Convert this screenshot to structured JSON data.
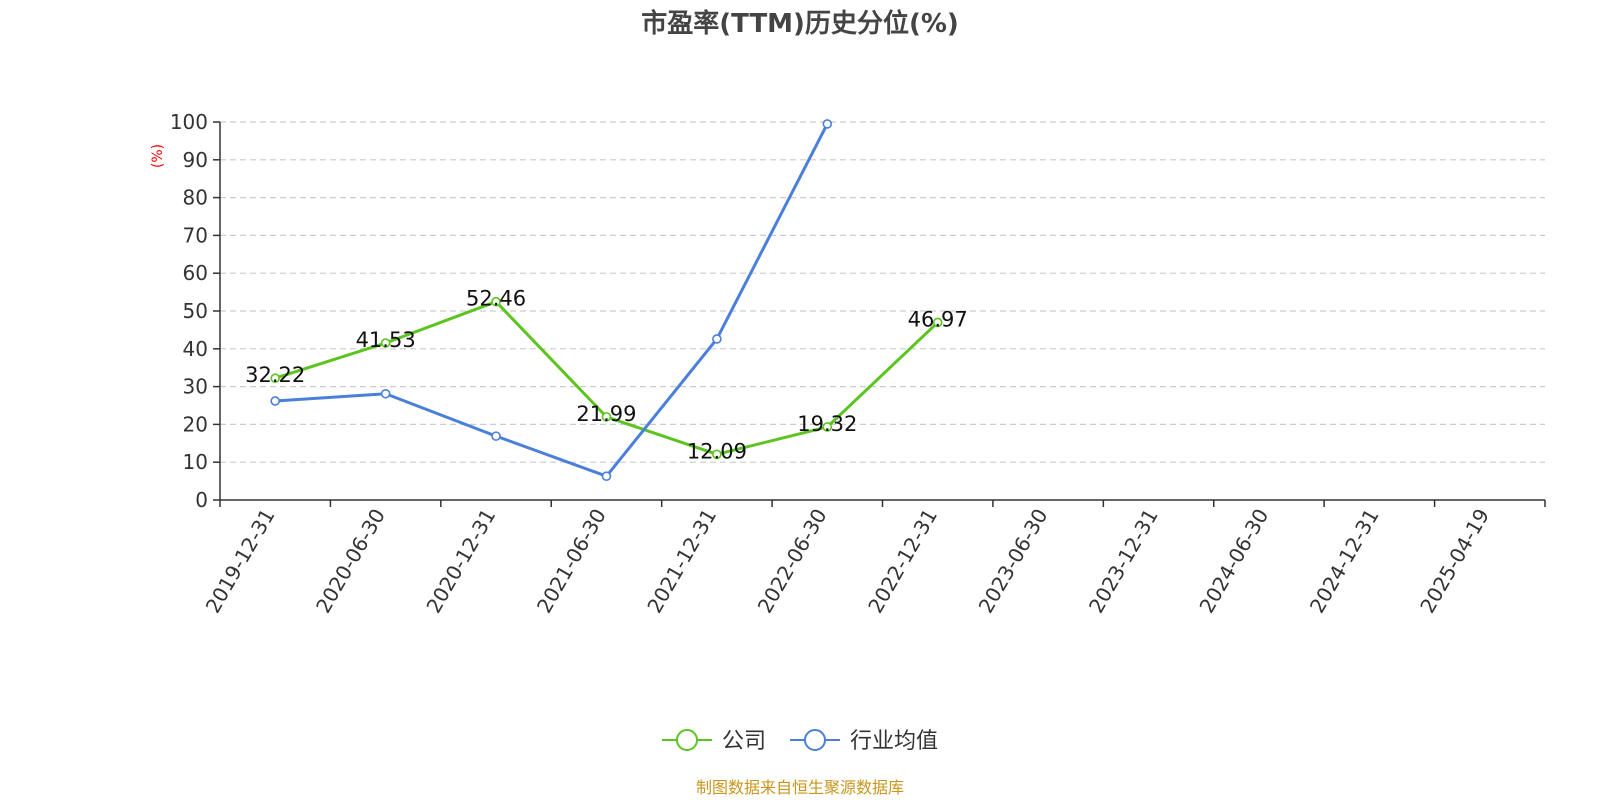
{
  "chart_data": {
    "type": "line",
    "title": "市盈率(TTM)历史分位(%)",
    "ylabel": "(%)",
    "ylim": [
      0,
      100
    ],
    "yticks": [
      0,
      10,
      20,
      30,
      40,
      50,
      60,
      70,
      80,
      90,
      100
    ],
    "grid": true,
    "legend_position": "bottom-center",
    "categories": [
      "2019-12-31",
      "2020-06-30",
      "2020-12-31",
      "2021-06-30",
      "2021-12-31",
      "2022-06-30",
      "2022-12-31",
      "2023-06-30",
      "2023-12-31",
      "2024-06-30",
      "2024-12-31",
      "2025-04-19"
    ],
    "series": [
      {
        "name": "公司",
        "color": "#5cc41f",
        "values": [
          32.22,
          41.53,
          52.46,
          21.99,
          12.09,
          19.32,
          46.97,
          null,
          null,
          null,
          null,
          null
        ],
        "labels": [
          "32.22",
          "41.53",
          "52.46",
          "21.99",
          "12.09",
          "19.32",
          "46.97",
          null,
          null,
          null,
          null,
          null
        ]
      },
      {
        "name": "行业均值",
        "color": "#4a7fdc",
        "values": [
          26.2,
          28.1,
          16.9,
          6.3,
          42.6,
          99.5,
          null,
          null,
          null,
          null,
          null,
          null
        ],
        "labels": null
      }
    ]
  },
  "source_note": "制图数据来自恒生聚源数据库"
}
